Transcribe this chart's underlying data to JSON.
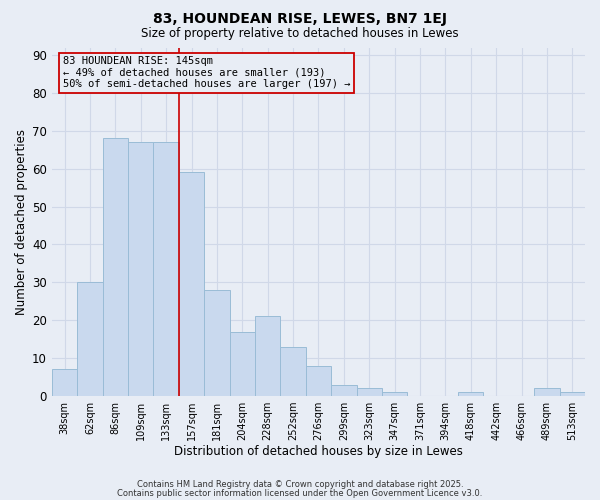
{
  "title": "83, HOUNDEAN RISE, LEWES, BN7 1EJ",
  "subtitle": "Size of property relative to detached houses in Lewes",
  "xlabel": "Distribution of detached houses by size in Lewes",
  "ylabel": "Number of detached properties",
  "bar_labels": [
    "38sqm",
    "62sqm",
    "86sqm",
    "109sqm",
    "133sqm",
    "157sqm",
    "181sqm",
    "204sqm",
    "228sqm",
    "252sqm",
    "276sqm",
    "299sqm",
    "323sqm",
    "347sqm",
    "371sqm",
    "394sqm",
    "418sqm",
    "442sqm",
    "466sqm",
    "489sqm",
    "513sqm"
  ],
  "bar_values": [
    7,
    30,
    68,
    67,
    67,
    59,
    28,
    17,
    21,
    13,
    8,
    3,
    2,
    1,
    0,
    0,
    1,
    0,
    0,
    2,
    1
  ],
  "bar_color": "#c9d9ee",
  "bar_edgecolor": "#9abcd6",
  "background_color": "#e8edf5",
  "grid_color": "#d0d8e8",
  "vline_color": "#cc0000",
  "vline_x_index": 4.5,
  "annotation_text": "83 HOUNDEAN RISE: 145sqm\n← 49% of detached houses are smaller (193)\n50% of semi-detached houses are larger (197) →",
  "annotation_box_edgecolor": "#cc0000",
  "ylim": [
    0,
    92
  ],
  "yticks": [
    0,
    10,
    20,
    30,
    40,
    50,
    60,
    70,
    80,
    90
  ],
  "footer_line1": "Contains HM Land Registry data © Crown copyright and database right 2025.",
  "footer_line2": "Contains public sector information licensed under the Open Government Licence v3.0."
}
